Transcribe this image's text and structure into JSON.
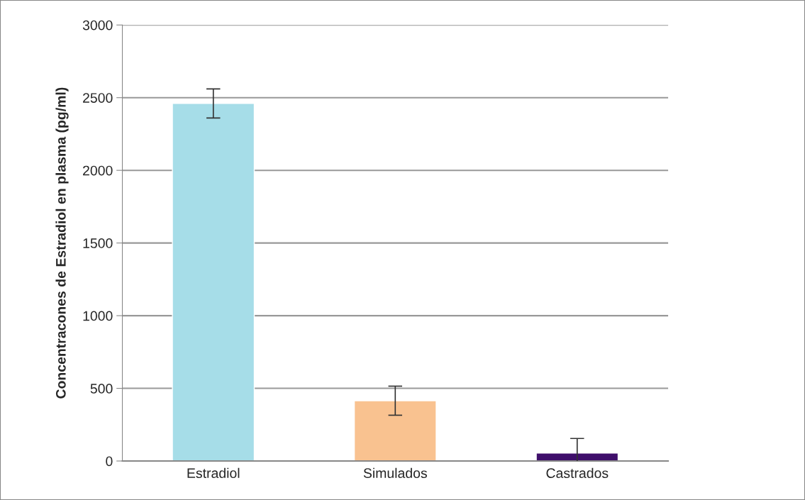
{
  "chart_data": {
    "type": "bar",
    "ylabel": "Concentracones de Estradiol en plasma (pg/ml)",
    "categories": [
      "Estradiol",
      "Simulados",
      "Castrados"
    ],
    "values": [
      2460,
      415,
      55
    ],
    "errors": [
      100,
      100,
      100
    ],
    "colors": [
      "#a6dde8",
      "#f9c290",
      "#3f0f6b"
    ],
    "ylim": [
      0,
      3000
    ],
    "yticks": [
      0,
      500,
      1000,
      1500,
      2000,
      2500,
      3000
    ],
    "grid": "y"
  }
}
